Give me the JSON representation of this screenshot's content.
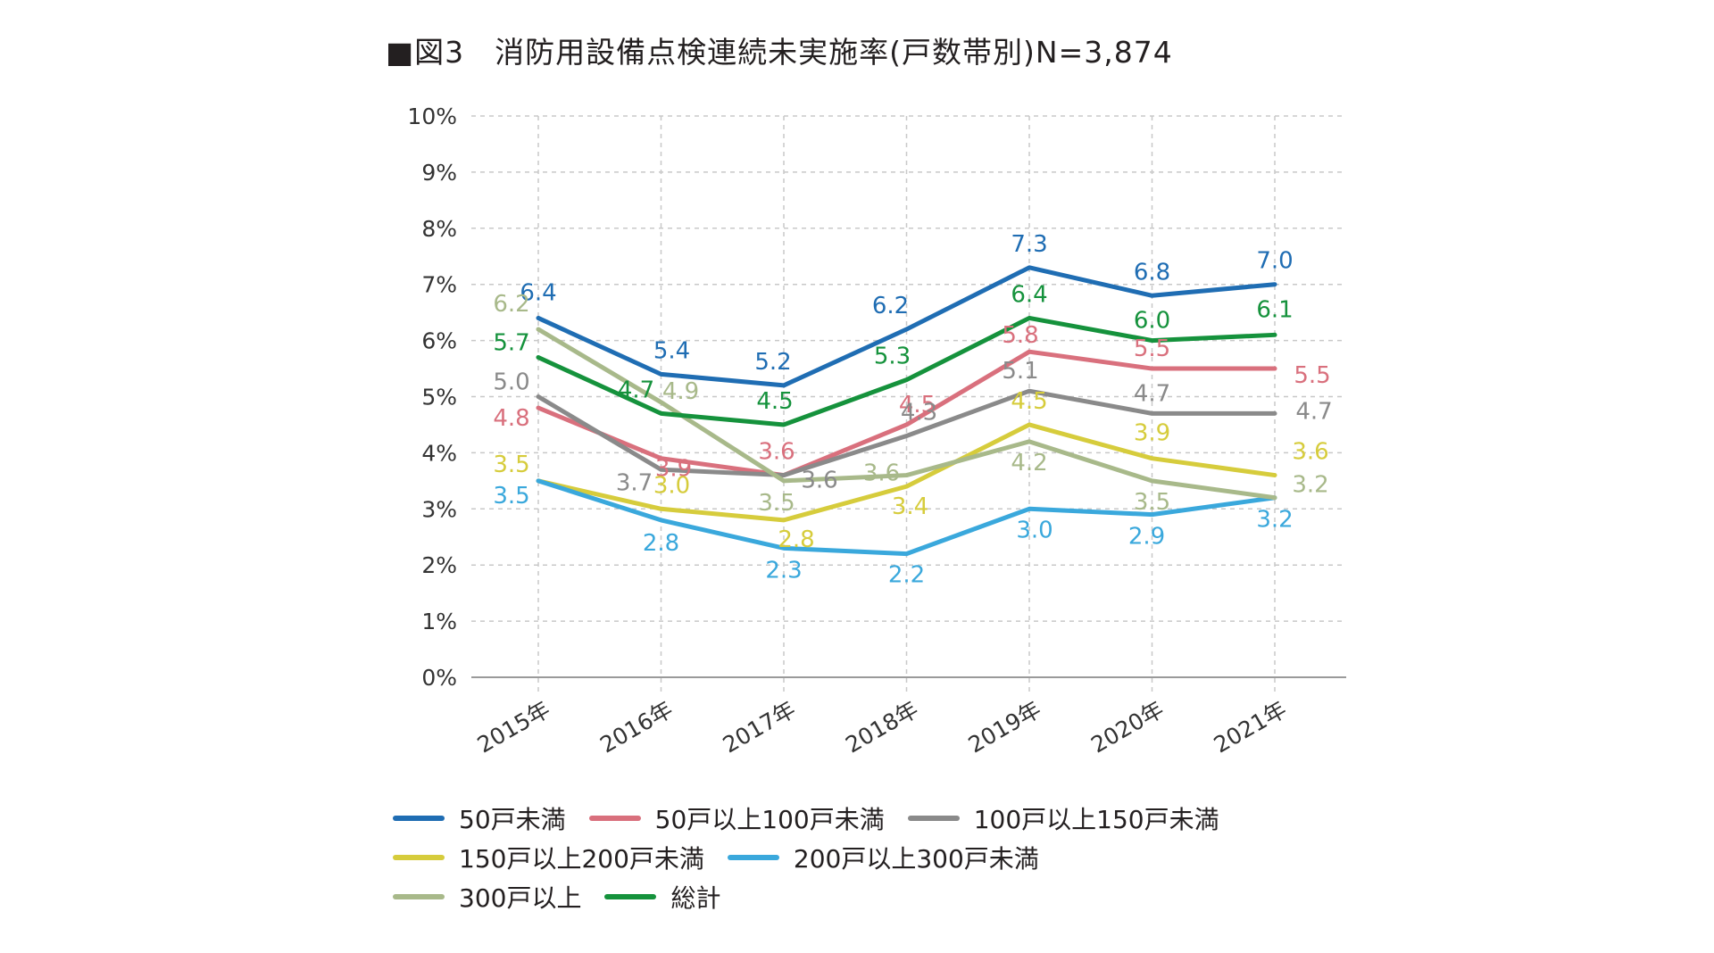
{
  "chart_data": {
    "type": "line",
    "title": "■図3　消防用設備点検連続未実施率(戸数帯別)N=3,874",
    "categories": [
      "2015年",
      "2016年",
      "2017年",
      "2018年",
      "2019年",
      "2020年",
      "2021年"
    ],
    "ylim": [
      0,
      10
    ],
    "yticks": [
      "0%",
      "1%",
      "2%",
      "3%",
      "4%",
      "5%",
      "6%",
      "7%",
      "8%",
      "9%",
      "10%"
    ],
    "grid": true,
    "legend_position": "bottom",
    "series": [
      {
        "name": "50戸未満",
        "color": "#1f6db3",
        "values": [
          6.4,
          5.4,
          5.2,
          6.2,
          7.3,
          6.8,
          7.0
        ],
        "labels": [
          "6.4",
          "5.4",
          "5.2",
          "6.2",
          "7.3",
          "6.8",
          "7.0"
        ]
      },
      {
        "name": "50戸以上100戸未満",
        "color": "#d9707d",
        "values": [
          4.8,
          3.9,
          3.6,
          4.5,
          5.8,
          5.5,
          5.5
        ],
        "labels": [
          "4.8",
          "3.9",
          "3.6",
          "4.5",
          "5.8",
          "5.5",
          "5.5"
        ]
      },
      {
        "name": "100戸以上150戸未満",
        "color": "#8a8a8a",
        "values": [
          5.0,
          3.7,
          3.6,
          4.3,
          5.1,
          4.7,
          4.7
        ],
        "labels": [
          "5.0",
          "3.7",
          "3.6",
          "4.3",
          "5.1",
          "4.7",
          "4.7"
        ]
      },
      {
        "name": "150戸以上200戸未満",
        "color": "#d6cc3c",
        "values": [
          3.5,
          3.0,
          2.8,
          3.4,
          4.5,
          3.9,
          3.6
        ],
        "labels": [
          "3.5",
          "3.0",
          "2.8",
          "3.4",
          "4.5",
          "3.9",
          "3.6"
        ]
      },
      {
        "name": "200戸以上300戸未満",
        "color": "#3aa8dc",
        "values": [
          3.5,
          2.8,
          2.3,
          2.2,
          3.0,
          2.9,
          3.2
        ],
        "labels": [
          "3.5",
          "2.8",
          "2.3",
          "2.2",
          "3.0",
          "2.9",
          "3.2"
        ]
      },
      {
        "name": "300戸以上",
        "color": "#a8b98a",
        "values": [
          6.2,
          4.9,
          3.5,
          3.6,
          4.2,
          3.5,
          3.2
        ],
        "labels": [
          "6.2",
          "4.9",
          "3.5",
          "3.6",
          "4.2",
          "3.5",
          "3.2"
        ]
      },
      {
        "name": "総計",
        "color": "#15923c",
        "values": [
          5.7,
          4.7,
          4.5,
          5.3,
          6.4,
          6.0,
          6.1
        ],
        "labels": [
          "5.7",
          "4.7",
          "4.5",
          "5.3",
          "6.4",
          "6.0",
          "6.1"
        ]
      }
    ],
    "legend_rows": [
      [
        0,
        1,
        2
      ],
      [
        3,
        4
      ],
      [
        5,
        6
      ]
    ]
  }
}
